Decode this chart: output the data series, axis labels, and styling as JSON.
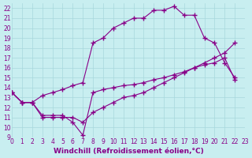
{
  "xlabel": "Windchill (Refroidissement éolien,°C)",
  "xlim": [
    0,
    23
  ],
  "ylim": [
    9,
    22.5
  ],
  "xticks": [
    0,
    1,
    2,
    3,
    4,
    5,
    6,
    7,
    8,
    9,
    10,
    11,
    12,
    13,
    14,
    15,
    16,
    17,
    18,
    19,
    20,
    21,
    22,
    23
  ],
  "yticks": [
    9,
    10,
    11,
    12,
    13,
    14,
    15,
    16,
    17,
    18,
    19,
    20,
    21,
    22
  ],
  "background_color": "#c8eef0",
  "grid_color": "#a8d8dc",
  "line_color": "#880088",
  "line1_x": [
    0,
    1,
    2,
    3,
    4,
    5,
    6,
    7,
    8,
    9,
    10,
    11,
    12,
    13,
    14,
    15,
    16,
    17,
    18,
    19,
    20,
    21,
    22
  ],
  "line1_y": [
    13.5,
    12.5,
    12.5,
    13.2,
    13.5,
    13.8,
    14.2,
    14.5,
    18.5,
    19.0,
    20.0,
    20.5,
    21.0,
    21.0,
    21.8,
    21.8,
    22.2,
    21.3,
    21.3,
    19.0,
    18.5,
    16.5,
    15.0
  ],
  "line2_x": [
    0,
    1,
    2,
    3,
    4,
    5,
    6,
    7,
    8,
    9,
    10,
    11,
    12,
    13,
    14,
    15,
    16,
    17,
    18,
    19,
    20,
    21,
    22
  ],
  "line2_y": [
    13.5,
    12.5,
    12.5,
    11.0,
    11.0,
    11.0,
    11.0,
    10.5,
    11.5,
    12.0,
    12.5,
    13.0,
    13.2,
    13.5,
    14.0,
    14.5,
    15.0,
    15.5,
    16.0,
    16.5,
    17.0,
    17.5,
    18.5
  ],
  "line3_x": [
    0,
    1,
    2,
    3,
    4,
    5,
    6,
    7,
    8,
    9,
    10,
    11,
    12,
    13,
    14,
    15,
    16,
    17,
    18,
    19,
    20,
    21,
    22
  ],
  "line3_y": [
    13.5,
    12.5,
    12.5,
    11.2,
    11.2,
    11.2,
    10.5,
    9.2,
    13.5,
    13.8,
    14.0,
    14.2,
    14.3,
    14.5,
    14.8,
    15.0,
    15.3,
    15.6,
    16.0,
    16.3,
    16.5,
    17.0,
    14.8
  ],
  "marker": "+",
  "markersize": 4.0,
  "linewidth": 0.8,
  "font_color": "#880088",
  "tick_fontsize": 5.5,
  "xlabel_fontsize": 6.5
}
